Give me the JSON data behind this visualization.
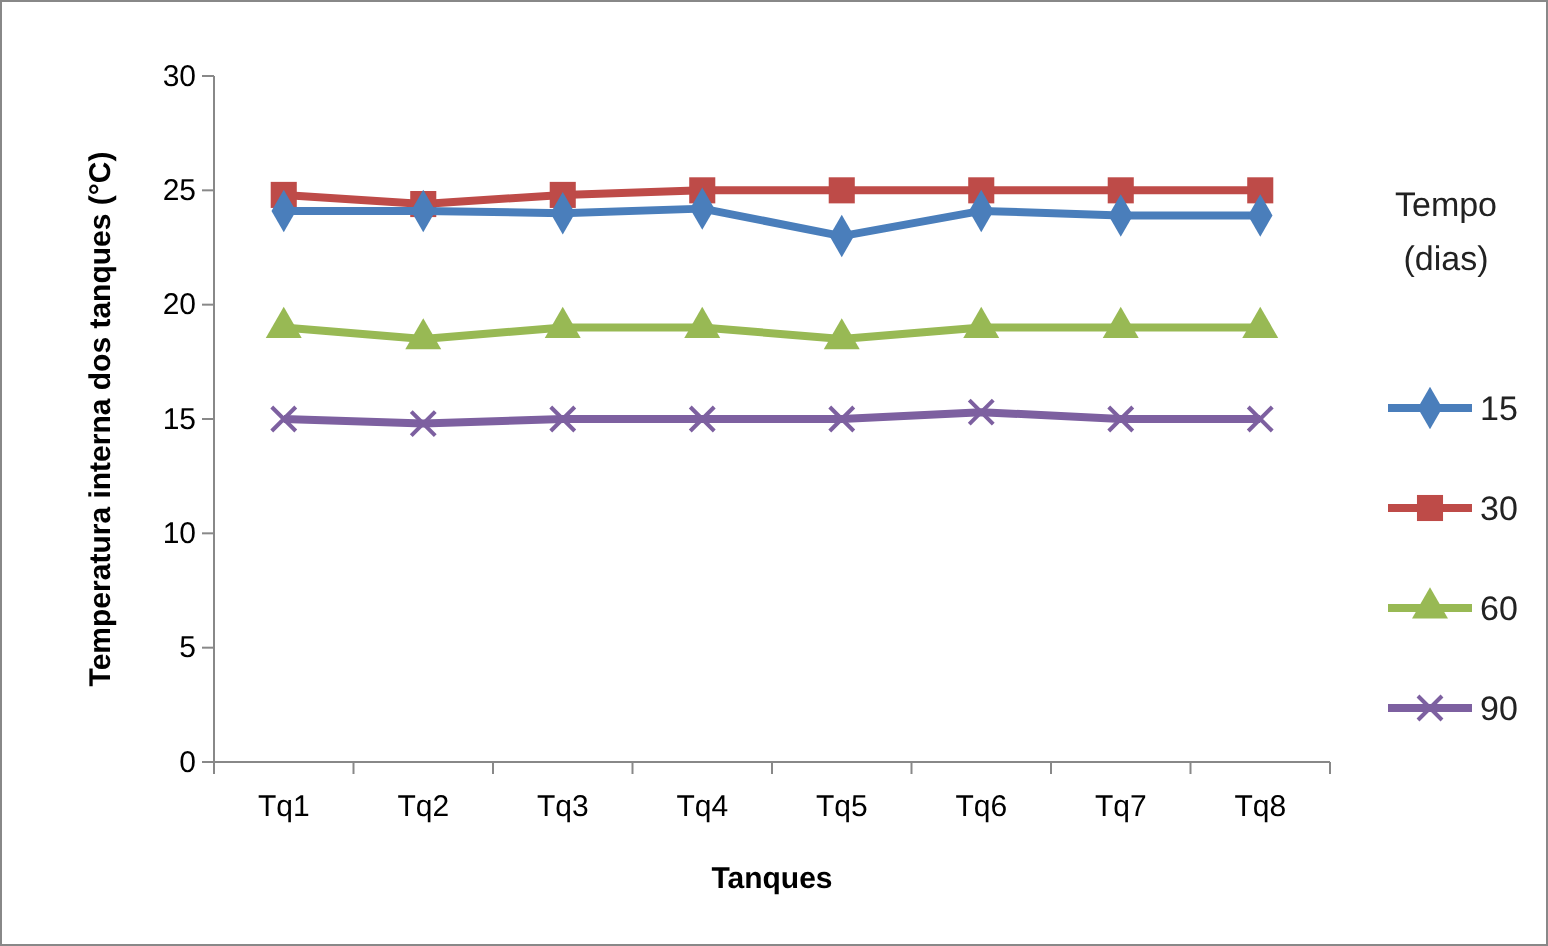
{
  "chart_data": {
    "type": "line",
    "xlabel": "Tanques",
    "ylabel": "Temperatura interna dos tanques (°C)",
    "legend_title": "Tempo (dias)",
    "legend": "right",
    "grid": false,
    "categories": [
      "Tq1",
      "Tq2",
      "Tq3",
      "Tq4",
      "Tq5",
      "Tq6",
      "Tq7",
      "Tq8"
    ],
    "ylim": [
      0,
      30
    ],
    "yticks": [
      0,
      5,
      10,
      15,
      20,
      25,
      30
    ],
    "series": [
      {
        "name": "15",
        "color": "#4a7ebb",
        "marker": "diamond",
        "values": [
          24.1,
          24.1,
          24.0,
          24.2,
          23.0,
          24.1,
          23.9,
          23.9
        ]
      },
      {
        "name": "30",
        "color": "#be4b48",
        "marker": "square",
        "values": [
          24.8,
          24.4,
          24.8,
          25.0,
          25.0,
          25.0,
          25.0,
          25.0
        ]
      },
      {
        "name": "60",
        "color": "#98b954",
        "marker": "triangle",
        "values": [
          19.0,
          18.5,
          19.0,
          19.0,
          18.5,
          19.0,
          19.0,
          19.0
        ]
      },
      {
        "name": "90",
        "color": "#7d60a0",
        "marker": "cross",
        "values": [
          15.0,
          14.8,
          15.0,
          15.0,
          15.0,
          15.3,
          15.0,
          15.0
        ]
      }
    ]
  }
}
